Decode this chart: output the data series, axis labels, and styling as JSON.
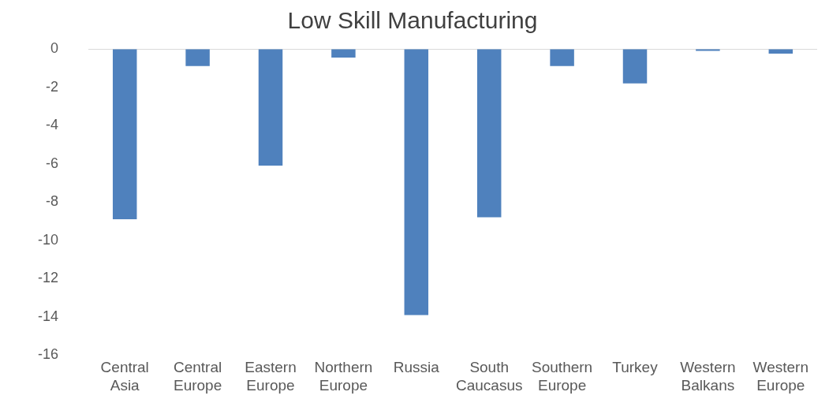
{
  "chart_data": {
    "type": "bar",
    "title": "Low Skill Manufacturing",
    "categories": [
      "Central Asia",
      "Central Europe",
      "Eastern Europe",
      "Northern Europe",
      "Russia",
      "South Caucasus",
      "Southern Europe",
      "Turkey",
      "Western Balkans",
      "Western Europe"
    ],
    "values": [
      -8.9,
      -0.9,
      -6.1,
      -0.45,
      -13.9,
      -8.8,
      -0.9,
      -1.8,
      -0.1,
      -0.25
    ],
    "color": "#4f81bd",
    "ylim": [
      -16,
      0
    ],
    "yticks": [
      -16,
      -14,
      -12,
      -10,
      -8,
      -6,
      -4,
      -2,
      0
    ],
    "grid": false,
    "legend": false
  }
}
